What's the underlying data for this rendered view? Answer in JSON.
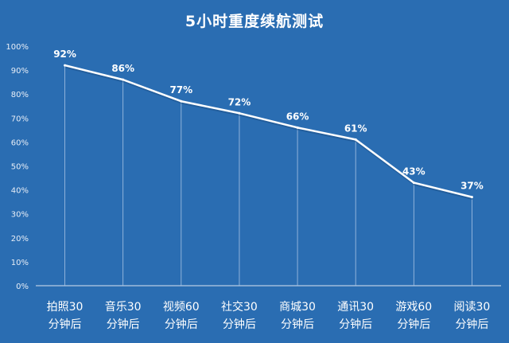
{
  "chart_data": {
    "type": "line",
    "title": "5小时重度续航测试",
    "categories": [
      [
        "拍照30",
        "分钟后"
      ],
      [
        "音乐30",
        "分钟后"
      ],
      [
        "视频60",
        "分钟后"
      ],
      [
        "社交30",
        "分钟后"
      ],
      [
        "商城30",
        "分钟后"
      ],
      [
        "通讯30",
        "分钟后"
      ],
      [
        "游戏60",
        "分钟后"
      ],
      [
        "阅读30",
        "分钟后"
      ]
    ],
    "values": [
      92,
      86,
      77,
      72,
      66,
      61,
      43,
      37
    ],
    "data_labels": [
      "92%",
      "86%",
      "77%",
      "72%",
      "66%",
      "61%",
      "43%",
      "37%"
    ],
    "ylim": [
      0,
      100
    ],
    "yticks": [
      "0%",
      "10%",
      "20%",
      "30%",
      "40%",
      "50%",
      "60%",
      "70%",
      "80%",
      "90%",
      "100%"
    ],
    "grid": false,
    "drop_lines": true,
    "colors": {
      "background": "#2a6db2",
      "line": "#ffffff",
      "text": "#ffffff"
    }
  }
}
